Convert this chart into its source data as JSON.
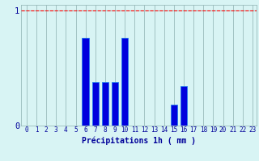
{
  "hours": [
    0,
    1,
    2,
    3,
    4,
    5,
    6,
    7,
    8,
    9,
    10,
    11,
    12,
    13,
    14,
    15,
    16,
    17,
    18,
    19,
    20,
    21,
    22,
    23
  ],
  "values": [
    0,
    0,
    0,
    0,
    0,
    0,
    0.76,
    0.38,
    0.38,
    0.38,
    0.76,
    0,
    0,
    0,
    0,
    0.18,
    0.34,
    0,
    0,
    0,
    0,
    0,
    0,
    0
  ],
  "bar_color": "#0000dd",
  "bar_edge_color": "#2277ee",
  "background_color": "#d8f4f4",
  "grid_color": "#99bbbb",
  "axis_color": "#000099",
  "xlabel": "Précipitations 1h ( mm )",
  "xlabel_fontsize": 7,
  "tick_fontsize": 5.5,
  "ylim": [
    0,
    1.05
  ],
  "yticks": [
    0,
    1
  ],
  "red_line_y": 1.0
}
